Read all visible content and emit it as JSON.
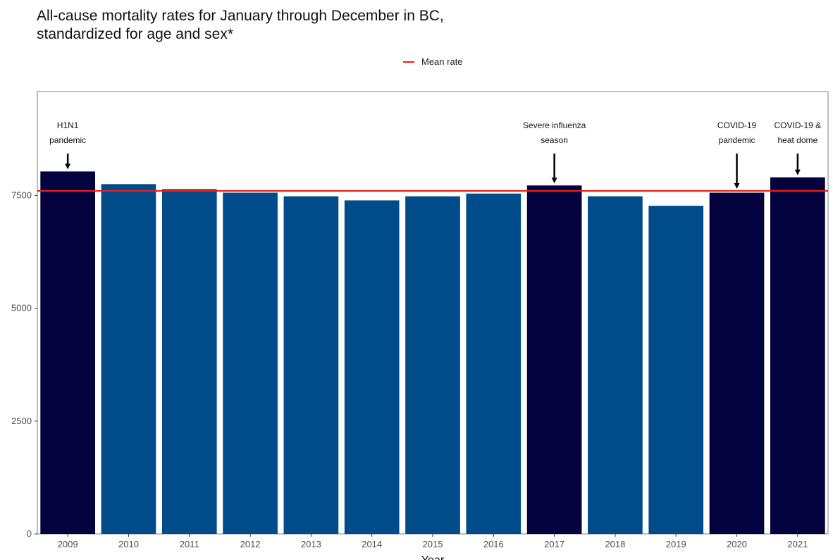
{
  "chart_data": {
    "type": "bar",
    "title_line1": "All-cause mortality rates for January through December in BC,",
    "title_line2": "standardized for age and sex*",
    "legend_label": "Mean rate",
    "xlabel": "Year",
    "ylabel": "",
    "categories": [
      "2009",
      "2010",
      "2011",
      "2012",
      "2013",
      "2014",
      "2015",
      "2016",
      "2017",
      "2018",
      "2019",
      "2020",
      "2021"
    ],
    "values": [
      8030,
      7750,
      7640,
      7560,
      7480,
      7390,
      7480,
      7540,
      7720,
      7480,
      7270,
      7560,
      7900
    ],
    "highlighted": [
      true,
      false,
      false,
      false,
      false,
      false,
      false,
      false,
      true,
      false,
      false,
      true,
      true
    ],
    "mean_rate": 7600,
    "ylim": [
      0,
      9800
    ],
    "yticks": [
      0,
      2500,
      5000,
      7500
    ],
    "grid": false,
    "legend_position": "top",
    "colors": {
      "highlight_bar": "#03013e",
      "normal_bar": "#004b8a",
      "mean_line": "#e8211b"
    },
    "annotations": [
      {
        "category": "2009",
        "lines": [
          "H1N1",
          "pandemic"
        ]
      },
      {
        "category": "2017",
        "lines": [
          "Severe influenza",
          "season"
        ]
      },
      {
        "category": "2020",
        "lines": [
          "COVID-19",
          "pandemic"
        ]
      },
      {
        "category": "2021",
        "lines": [
          "COVID-19 &",
          "heat dome"
        ]
      }
    ]
  }
}
